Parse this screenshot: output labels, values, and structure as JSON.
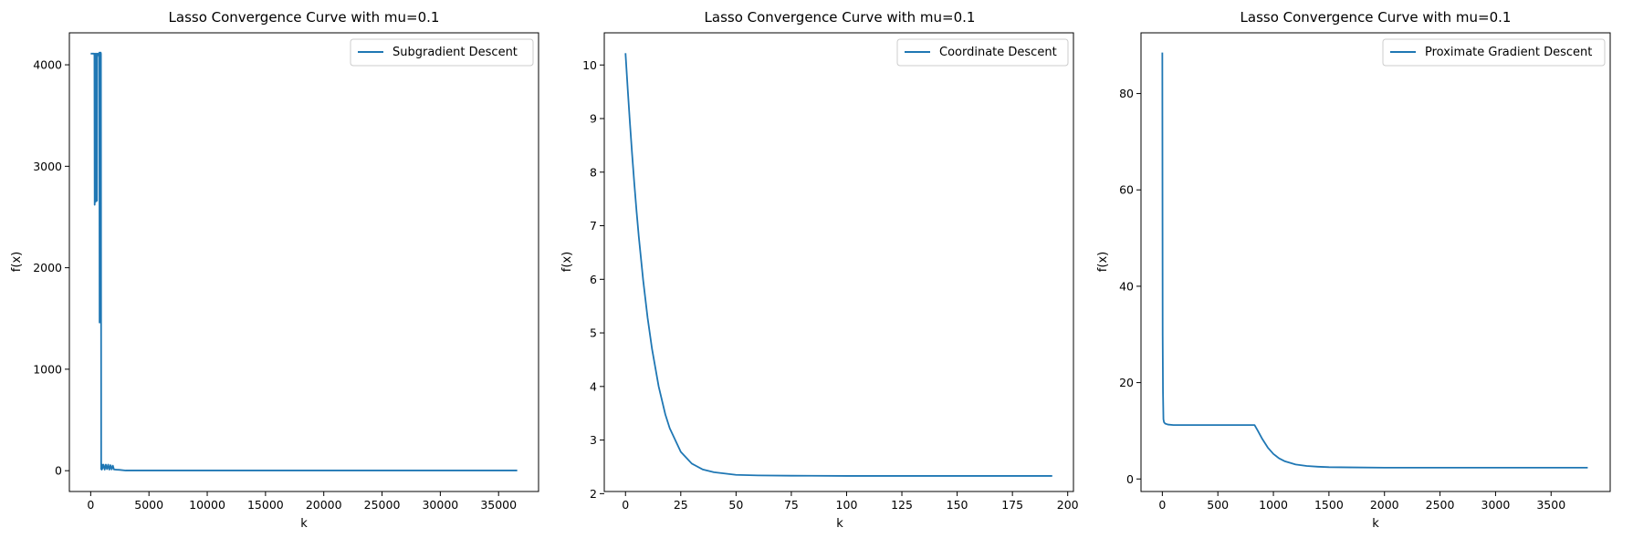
{
  "chart_data": [
    {
      "type": "line",
      "title": "Lasso Convergence Curve with mu=0.1",
      "xlabel": "k",
      "ylabel": "f(x)",
      "xlim": [
        -1830,
        38430
      ],
      "ylim": [
        -205,
        4315
      ],
      "xticks": [
        0,
        5000,
        10000,
        15000,
        20000,
        25000,
        30000,
        35000
      ],
      "yticks": [
        0,
        1000,
        2000,
        3000,
        4000
      ],
      "grid": false,
      "legend": "top-right",
      "series": [
        {
          "name": "Subgradient Descent",
          "color": "#1f77b4",
          "x": [
            0,
            200,
            300,
            320,
            340,
            350,
            380,
            400,
            420,
            450,
            500,
            520,
            540,
            560,
            600,
            650,
            700,
            720,
            740,
            760,
            780,
            800,
            820,
            840,
            860,
            880,
            900,
            920,
            950,
            980,
            1000,
            1100,
            1200,
            1300,
            1400,
            1500,
            1600,
            1700,
            1800,
            1900,
            2000,
            2200,
            2500,
            3000,
            4000,
            10000,
            20000,
            30000,
            36600
          ],
          "y": [
            4110,
            4110,
            4110,
            4090,
            2620,
            2660,
            4110,
            4100,
            2650,
            2660,
            4110,
            4100,
            2660,
            4110,
            4110,
            4100,
            4110,
            4080,
            4120,
            1460,
            4110,
            1470,
            4120,
            1500,
            4120,
            4110,
            15,
            60,
            10,
            60,
            20,
            60,
            10,
            60,
            15,
            60,
            10,
            55,
            12,
            50,
            12,
            10,
            8,
            2,
            2,
            2,
            2,
            2,
            2
          ]
        }
      ]
    },
    {
      "type": "line",
      "title": "Lasso Convergence Curve with mu=0.1",
      "xlabel": "k",
      "ylabel": "f(x)",
      "xlim": [
        -9.6,
        202.6
      ],
      "ylim": [
        2.04,
        10.6
      ],
      "xticks": [
        0,
        25,
        50,
        75,
        100,
        125,
        150,
        175,
        200
      ],
      "yticks": [
        2,
        3,
        4,
        5,
        6,
        7,
        8,
        9,
        10
      ],
      "grid": false,
      "legend": "top-right",
      "series": [
        {
          "name": "Coordinate Descent",
          "color": "#1f77b4",
          "x": [
            0,
            1,
            2,
            3,
            4,
            5,
            6,
            8,
            10,
            12,
            15,
            18,
            20,
            25,
            30,
            35,
            40,
            50,
            60,
            75,
            100,
            125,
            150,
            175,
            193
          ],
          "y": [
            10.22,
            9.55,
            8.92,
            8.33,
            7.78,
            7.27,
            6.8,
            5.98,
            5.28,
            4.7,
            4.0,
            3.48,
            3.22,
            2.78,
            2.56,
            2.45,
            2.4,
            2.35,
            2.34,
            2.335,
            2.33,
            2.33,
            2.33,
            2.33,
            2.33
          ]
        }
      ]
    },
    {
      "type": "line",
      "title": "Lasso Convergence Curve with mu=0.1",
      "xlabel": "k",
      "ylabel": "f(x)",
      "xlim": [
        -192,
        4032
      ],
      "ylim": [
        -2.6,
        92.6
      ],
      "xticks": [
        0,
        500,
        1000,
        1500,
        2000,
        2500,
        3000,
        3500
      ],
      "yticks": [
        0,
        20,
        40,
        60,
        80
      ],
      "grid": false,
      "legend": "top-right",
      "series": [
        {
          "name": "Proximate Gradient Descent",
          "color": "#1f77b4",
          "x": [
            0,
            3,
            6,
            10,
            15,
            25,
            50,
            100,
            200,
            400,
            600,
            800,
            830,
            860,
            900,
            950,
            1000,
            1050,
            1100,
            1200,
            1300,
            1400,
            1500,
            1700,
            2000,
            2500,
            3000,
            3500,
            3830
          ],
          "y": [
            88.5,
            30,
            18,
            12.4,
            11.8,
            11.5,
            11.3,
            11.2,
            11.2,
            11.2,
            11.2,
            11.2,
            11.2,
            10.0,
            8.3,
            6.5,
            5.2,
            4.3,
            3.7,
            3.0,
            2.7,
            2.55,
            2.45,
            2.4,
            2.35,
            2.35,
            2.35,
            2.35,
            2.35
          ]
        }
      ]
    }
  ]
}
